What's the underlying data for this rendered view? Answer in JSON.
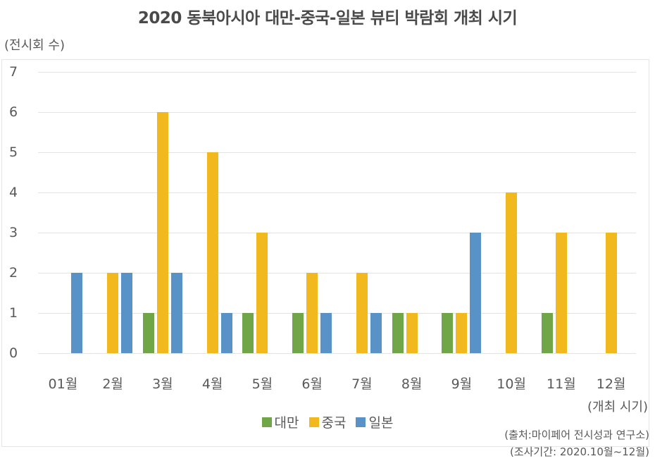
{
  "chart_data": {
    "type": "bar",
    "title": "2020 동북아시아 대만-중국-일본 뷰티 박람회 개최 시기",
    "ylabel": "(전시회 수)",
    "xlabel": "(개최 시기)",
    "ylim": [
      0,
      7
    ],
    "yticks": [
      "0",
      "1",
      "2",
      "3",
      "4",
      "5",
      "6",
      "7"
    ],
    "grid": true,
    "legend_position": "bottom",
    "categories": [
      "01월",
      "2월",
      "3월",
      "4월",
      "5월",
      "6월",
      "7월",
      "8월",
      "9월",
      "10월",
      "11월",
      "12월"
    ],
    "series": [
      {
        "name": "대만",
        "color": "#70a647",
        "values": [
          0,
          0,
          1,
          0,
          1,
          1,
          0,
          1,
          1,
          0,
          1,
          0
        ]
      },
      {
        "name": "중국",
        "color": "#f2b91e",
        "values": [
          0,
          2,
          6,
          5,
          3,
          2,
          2,
          1,
          1,
          4,
          3,
          3
        ]
      },
      {
        "name": "일본",
        "color": "#5892c6",
        "values": [
          2,
          2,
          2,
          1,
          0,
          1,
          1,
          0,
          3,
          0,
          0,
          0
        ]
      }
    ]
  },
  "notes": {
    "source": "(출처:마이페어 전시성과 연구소)",
    "period": "(조사기간: 2020.10월~12월)"
  }
}
